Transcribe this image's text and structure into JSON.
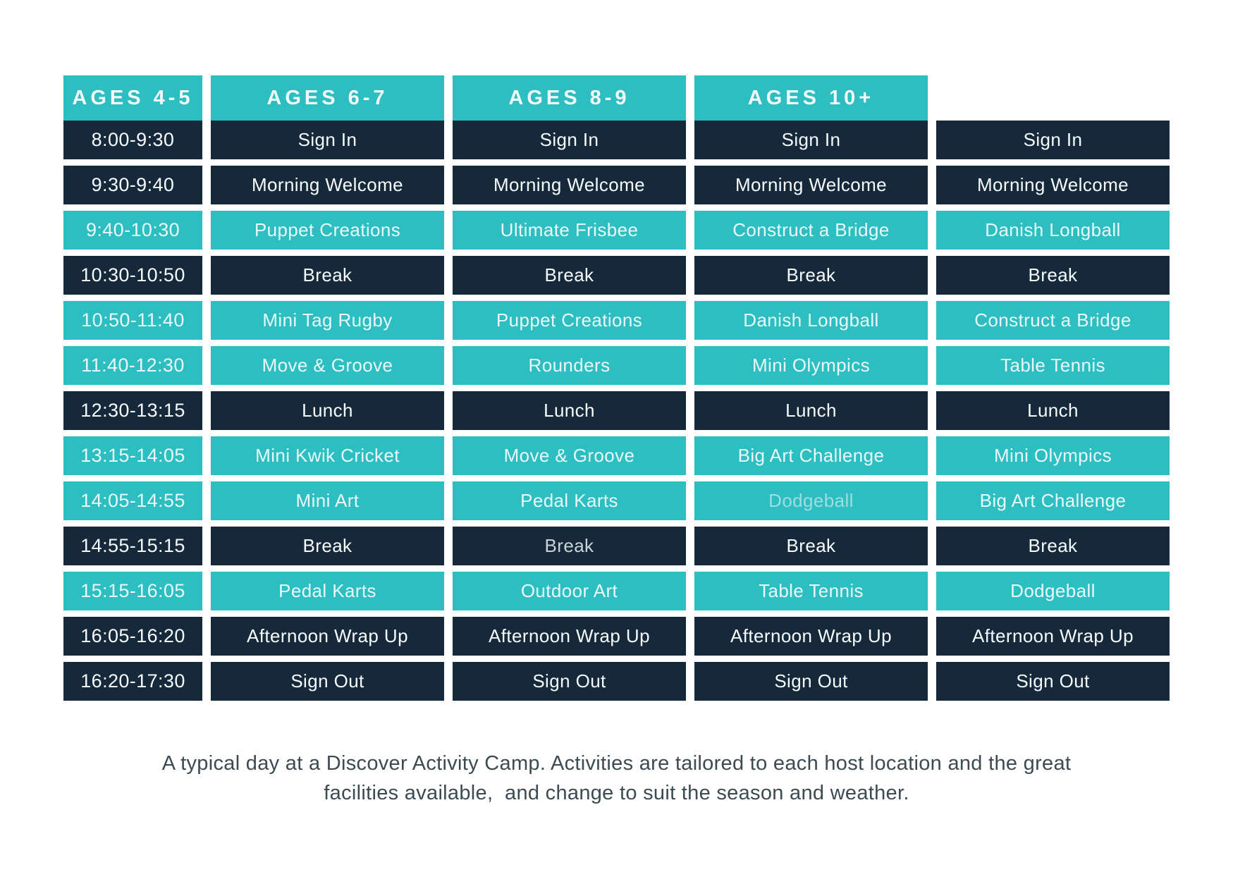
{
  "colors": {
    "page_bg": "#ffffff",
    "teal": "#2dbec2",
    "navy": "#16293b",
    "header_text": "#f2fbfb",
    "text_on_dark": "#f7fbfc",
    "text_on_teal": "#e9f8f9",
    "dim_on_teal": "#9fdde0",
    "dim_on_dark": "#c9d3da",
    "footer_text": "#3c4a52"
  },
  "table": {
    "columns": [
      "AGES 4-5",
      "AGES 6-7",
      "AGES 8-9",
      "AGES 10+"
    ],
    "rows": [
      {
        "time": "8:00-9:30",
        "theme": "dark",
        "cells": [
          "Sign In",
          "Sign In",
          "Sign In",
          "Sign In"
        ]
      },
      {
        "time": "9:30-9:40",
        "theme": "dark",
        "cells": [
          "Morning Welcome",
          "Morning Welcome",
          "Morning Welcome",
          "Morning Welcome"
        ]
      },
      {
        "time": "9:40-10:30",
        "theme": "teal",
        "cells": [
          "Puppet Creations",
          "Ultimate Frisbee",
          "Construct a Bridge",
          "Danish Longball"
        ]
      },
      {
        "time": "10:30-10:50",
        "theme": "dark",
        "cells": [
          "Break",
          "Break",
          "Break",
          "Break"
        ]
      },
      {
        "time": "10:50-11:40",
        "theme": "teal",
        "cells": [
          "Mini Tag Rugby",
          "Puppet Creations",
          "Danish Longball",
          "Construct a Bridge"
        ]
      },
      {
        "time": "11:40-12:30",
        "theme": "teal",
        "cells": [
          "Move & Groove",
          "Rounders",
          "Mini Olympics",
          "Table Tennis"
        ]
      },
      {
        "time": "12:30-13:15",
        "theme": "dark",
        "cells": [
          "Lunch",
          "Lunch",
          "Lunch",
          "Lunch"
        ]
      },
      {
        "time": "13:15-14:05",
        "theme": "teal",
        "cells": [
          "Mini Kwik Cricket",
          "Move & Groove",
          "Big Art Challenge",
          "Mini Olympics"
        ]
      },
      {
        "time": "14:05-14:55",
        "theme": "teal",
        "cells": [
          "Mini Art",
          "Pedal Karts",
          "Dodgeball",
          "Big Art Challenge"
        ]
      },
      {
        "time": "14:55-15:15",
        "theme": "dark",
        "cells": [
          "Break",
          "Break",
          "Break",
          "Break"
        ]
      },
      {
        "time": "15:15-16:05",
        "theme": "teal",
        "cells": [
          "Pedal Karts",
          "Outdoor Art",
          "Table Tennis",
          "Dodgeball"
        ]
      },
      {
        "time": "16:05-16:20",
        "theme": "dark",
        "cells": [
          "Afternoon Wrap Up",
          "Afternoon Wrap Up",
          "Afternoon Wrap Up",
          "Afternoon Wrap Up"
        ]
      },
      {
        "time": "16:20-17:30",
        "theme": "dark",
        "cells": [
          "Sign Out",
          "Sign Out",
          "Sign Out",
          "Sign Out"
        ]
      }
    ],
    "dim_cells": [
      {
        "row": 8,
        "col": 2,
        "style": "dim-teal"
      },
      {
        "row": 9,
        "col": 1,
        "style": "dim-dark"
      }
    ]
  },
  "footer": {
    "note": "A typical day at a Discover Activity Camp. Activities are tailored to each host location and the great\nfacilities available,  and change to suit the season and weather."
  }
}
